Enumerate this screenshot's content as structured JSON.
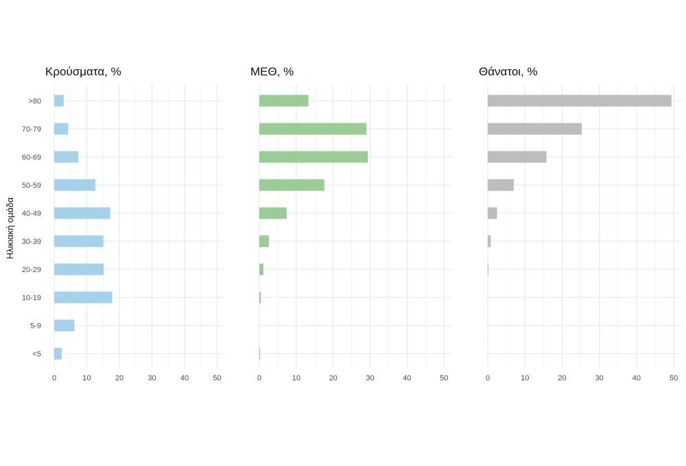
{
  "chart_data": {
    "type": "bar",
    "orientation": "horizontal",
    "ylabel": "Ηλικιακή ομάδα",
    "categories": [
      "<5",
      "5-9",
      "10-19",
      "20-29",
      "30-39",
      "40-49",
      "50-59",
      "60-69",
      "70-79",
      ">80"
    ],
    "xlim": [
      0,
      52
    ],
    "xticks": [
      0,
      10,
      20,
      30,
      40,
      50
    ],
    "grid": true,
    "legend": "none",
    "panels": [
      {
        "title": "Κρούσματα, %",
        "color": "#a6d1ea",
        "values": [
          2.3,
          6.2,
          17.8,
          15.2,
          15.1,
          17.2,
          12.6,
          7.4,
          4.3,
          2.9
        ]
      },
      {
        "title": "ΜΕΘ, %",
        "color": "#9bcc98",
        "values": [
          0.2,
          0.0,
          0.4,
          1.1,
          2.6,
          7.4,
          17.6,
          29.4,
          29.0,
          13.3
        ]
      },
      {
        "title": "Θάνατοι, %",
        "color": "#bdbdbd",
        "values": [
          0.0,
          0.0,
          0.0,
          0.2,
          0.8,
          2.5,
          7.0,
          15.8,
          25.3,
          49.4
        ]
      }
    ]
  }
}
